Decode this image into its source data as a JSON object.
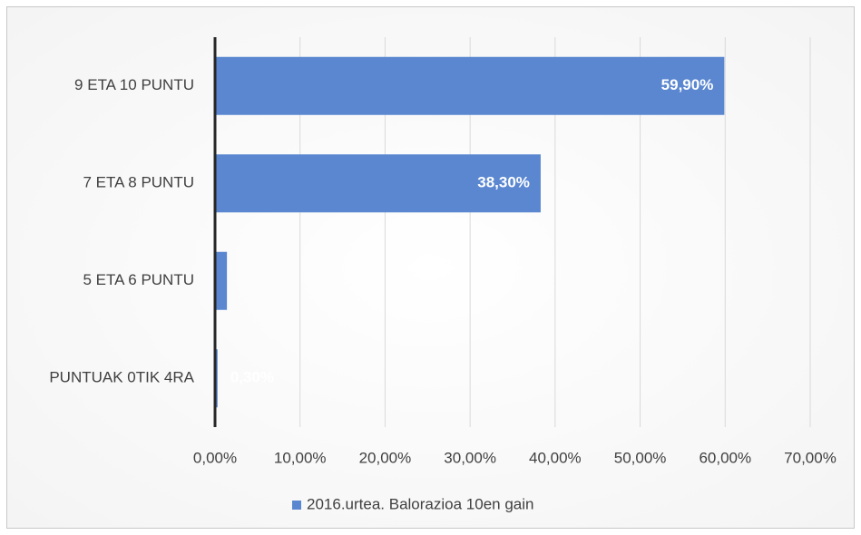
{
  "chart_data": {
    "type": "hbar",
    "categories": [
      "9 ETA 10 PUNTU",
      "7 ETA 8 PUNTU",
      "5 ETA 6 PUNTU",
      "PUNTUAK 0TIK 4RA"
    ],
    "series": [
      {
        "name": "2016.urtea. Balorazioa 10en gain",
        "color": "#5a87d0",
        "values": [
          59.9,
          38.3,
          1.4,
          0.3
        ],
        "value_labels": [
          "59,90%",
          "38,30%",
          null,
          "0,30%"
        ]
      }
    ],
    "xlim": [
      0,
      70
    ],
    "xticks": [
      {
        "value": 0,
        "label": "0,00%"
      },
      {
        "value": 10,
        "label": "10,00%"
      },
      {
        "value": 20,
        "label": "20,00%"
      },
      {
        "value": 30,
        "label": "30,00%"
      },
      {
        "value": 40,
        "label": "40,00%"
      },
      {
        "value": 50,
        "label": "50,00%"
      },
      {
        "value": 60,
        "label": "60,00%"
      },
      {
        "value": 70,
        "label": "70,00%"
      }
    ],
    "grid": true,
    "legend": "bottom"
  }
}
